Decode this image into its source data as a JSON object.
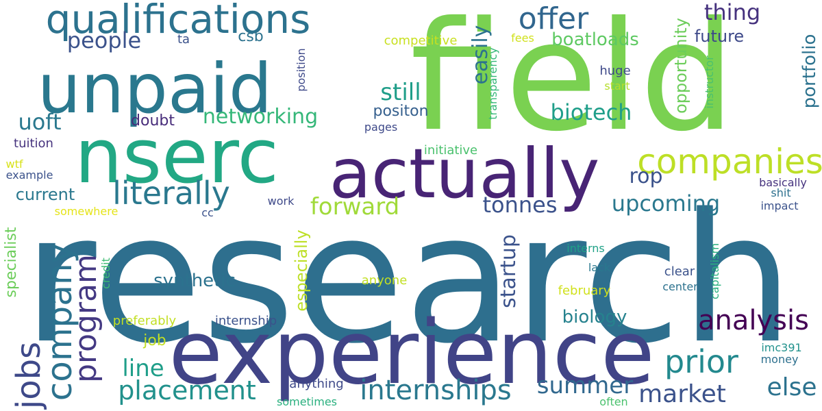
{
  "words": [
    {
      "text": "research",
      "color": "#2e6f8e",
      "rotated": false
    },
    {
      "text": "field",
      "color": "#7ad151",
      "rotated": false
    },
    {
      "text": "experience",
      "color": "#414487",
      "rotated": false
    },
    {
      "text": "nserc",
      "color": "#22a884",
      "rotated": false
    },
    {
      "text": "unpaid",
      "color": "#2a788e",
      "rotated": false
    },
    {
      "text": "actually",
      "color": "#482475",
      "rotated": false
    },
    {
      "text": "qualifications",
      "color": "#2c728e",
      "rotated": false
    },
    {
      "text": "companies",
      "color": "#bddf26",
      "rotated": false
    },
    {
      "text": "literally",
      "color": "#2a788e",
      "rotated": false
    },
    {
      "text": "prior",
      "color": "#23898e",
      "rotated": false
    },
    {
      "text": "offer",
      "color": "#31668e",
      "rotated": false
    },
    {
      "text": "analysis",
      "color": "#440154",
      "rotated": false
    },
    {
      "text": "internships",
      "color": "#2a788e",
      "rotated": false
    },
    {
      "text": "placement",
      "color": "#21918c",
      "rotated": false
    },
    {
      "text": "company",
      "color": "#2c728e",
      "rotated": true
    },
    {
      "text": "jobs",
      "color": "#3e4989",
      "rotated": true
    },
    {
      "text": "program",
      "color": "#443983",
      "rotated": true
    },
    {
      "text": "market",
      "color": "#3b528b",
      "rotated": false
    },
    {
      "text": "else",
      "color": "#2c728e",
      "rotated": false
    },
    {
      "text": "summer",
      "color": "#31688e",
      "rotated": false
    },
    {
      "text": "forward",
      "color": "#a0da39",
      "rotated": false
    },
    {
      "text": "upcoming",
      "color": "#2a788e",
      "rotated": false
    },
    {
      "text": "tonnes",
      "color": "#3b528b",
      "rotated": false
    },
    {
      "text": "networking",
      "color": "#35b779",
      "rotated": false
    },
    {
      "text": "biotech",
      "color": "#1f9e89",
      "rotated": false
    },
    {
      "text": "still",
      "color": "#1f9e89",
      "rotated": false
    },
    {
      "text": "thing",
      "color": "#46327e",
      "rotated": false
    },
    {
      "text": "people",
      "color": "#3b528b",
      "rotated": false
    },
    {
      "text": "uoft",
      "color": "#2a788e",
      "rotated": false
    },
    {
      "text": "line",
      "color": "#1f9e89",
      "rotated": false
    },
    {
      "text": "startup",
      "color": "#3b528b",
      "rotated": true
    },
    {
      "text": "synthetic",
      "color": "#2c728e",
      "rotated": false
    },
    {
      "text": "biology",
      "color": "#26828e",
      "rotated": false
    },
    {
      "text": "easily",
      "color": "#2c728e",
      "rotated": true
    },
    {
      "text": "especially",
      "color": "#bddf26",
      "rotated": true
    },
    {
      "text": "rop",
      "color": "#3b528b",
      "rotated": false
    },
    {
      "text": "current",
      "color": "#2a788e",
      "rotated": false
    },
    {
      "text": "boatloads",
      "color": "#5ec962",
      "rotated": false
    },
    {
      "text": "future",
      "color": "#3e4989",
      "rotated": false
    },
    {
      "text": "portfolio",
      "color": "#2c728e",
      "rotated": true
    },
    {
      "text": "opportunity",
      "color": "#6ccd5a",
      "rotated": true
    },
    {
      "text": "specialist",
      "color": "#6ccd5a",
      "rotated": true
    },
    {
      "text": "positon",
      "color": "#355f8d",
      "rotated": false
    },
    {
      "text": "doubt",
      "color": "#472c7a",
      "rotated": false
    },
    {
      "text": "csb",
      "color": "#2c728e",
      "rotated": false
    },
    {
      "text": "job",
      "color": "#c2df23",
      "rotated": false
    },
    {
      "text": "huge",
      "color": "#3e4989",
      "rotated": false
    },
    {
      "text": "tuition",
      "color": "#46337e",
      "rotated": false
    },
    {
      "text": "transparency",
      "color": "#35b779",
      "rotated": true
    },
    {
      "text": "instructor",
      "color": "#4ac16d",
      "rotated": true
    },
    {
      "text": "position",
      "color": "#3e4989",
      "rotated": true
    },
    {
      "text": "competitive",
      "color": "#c8e020",
      "rotated": false
    },
    {
      "text": "initiative",
      "color": "#4ac16d",
      "rotated": false
    },
    {
      "text": "fees",
      "color": "#d0e11c",
      "rotated": false
    },
    {
      "text": "ta",
      "color": "#3b528b",
      "rotated": false
    },
    {
      "text": "pages",
      "color": "#3e4989",
      "rotated": false
    },
    {
      "text": "start",
      "color": "#b5de2b",
      "rotated": false
    },
    {
      "text": "basically",
      "color": "#46337e",
      "rotated": false
    },
    {
      "text": "shit",
      "color": "#2d708e",
      "rotated": false
    },
    {
      "text": "impact",
      "color": "#3b528b",
      "rotated": false
    },
    {
      "text": "wtf",
      "color": "#d8e219",
      "rotated": false
    },
    {
      "text": "example",
      "color": "#3b528b",
      "rotated": false
    },
    {
      "text": "somewhere",
      "color": "#e5e419",
      "rotated": false
    },
    {
      "text": "work",
      "color": "#3e4989",
      "rotated": false
    },
    {
      "text": "cc",
      "color": "#3b528b",
      "rotated": false
    },
    {
      "text": "interns",
      "color": "#1fa187",
      "rotated": false
    },
    {
      "text": "lack",
      "color": "#2a788e",
      "rotated": false
    },
    {
      "text": "clear",
      "color": "#3b528b",
      "rotated": false
    },
    {
      "text": "center",
      "color": "#2c728e",
      "rotated": false
    },
    {
      "text": "capitalism",
      "color": "#2ab07f",
      "rotated": true
    },
    {
      "text": "anyone",
      "color": "#c2df23",
      "rotated": false
    },
    {
      "text": "february",
      "color": "#d0e11c",
      "rotated": false
    },
    {
      "text": "credit",
      "color": "#3fbc73",
      "rotated": true
    },
    {
      "text": "preferably",
      "color": "#c2df23",
      "rotated": false
    },
    {
      "text": "internship",
      "color": "#3b528b",
      "rotated": false
    },
    {
      "text": "imc391",
      "color": "#21918c",
      "rotated": false
    },
    {
      "text": "money",
      "color": "#2d708e",
      "rotated": false
    },
    {
      "text": "anything",
      "color": "#3e4989",
      "rotated": false
    },
    {
      "text": "sometimes",
      "color": "#2ab07f",
      "rotated": false
    },
    {
      "text": "often",
      "color": "#4ac16d",
      "rotated": false
    }
  ]
}
